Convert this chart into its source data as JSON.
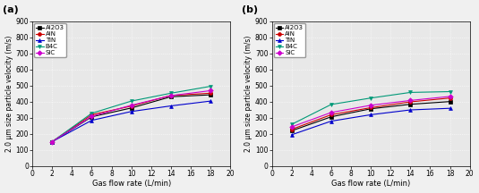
{
  "x": [
    2,
    6,
    10,
    14,
    18
  ],
  "panel_a": {
    "Al2O3": [
      150,
      305,
      360,
      430,
      442
    ],
    "AlN": [
      150,
      318,
      372,
      438,
      452
    ],
    "TiN": [
      150,
      283,
      338,
      373,
      403
    ],
    "B4C": [
      150,
      327,
      403,
      452,
      495
    ],
    "SiC": [
      150,
      308,
      377,
      437,
      468
    ]
  },
  "panel_b": {
    "Al2O3": [
      218,
      305,
      355,
      383,
      400
    ],
    "AlN": [
      227,
      318,
      362,
      398,
      422
    ],
    "TiN": [
      193,
      278,
      318,
      348,
      358
    ],
    "B4C": [
      258,
      382,
      422,
      457,
      462
    ],
    "SiC": [
      242,
      332,
      377,
      407,
      432
    ]
  },
  "colors": {
    "Al2O3": "#000000",
    "AlN": "#cc0000",
    "TiN": "#0000cc",
    "B4C": "#009977",
    "SiC": "#cc00cc"
  },
  "markers": {
    "Al2O3": "s",
    "AlN": "o",
    "TiN": "^",
    "B4C": "v",
    "SiC": "D"
  },
  "ylabel": "2.0 μm size particle velocity (m/s)",
  "xlabel": "Gas flow rate (L/min)",
  "ylim": [
    0,
    900
  ],
  "xlim": [
    0,
    20
  ],
  "yticks": [
    0,
    100,
    200,
    300,
    400,
    500,
    600,
    700,
    800,
    900
  ],
  "xticks": [
    0,
    2,
    4,
    6,
    8,
    10,
    12,
    14,
    16,
    18,
    20
  ],
  "labels": [
    "Al2O3",
    "AlN",
    "TiN",
    "B4C",
    "SiC"
  ],
  "bg_color": "#e8e8e8"
}
